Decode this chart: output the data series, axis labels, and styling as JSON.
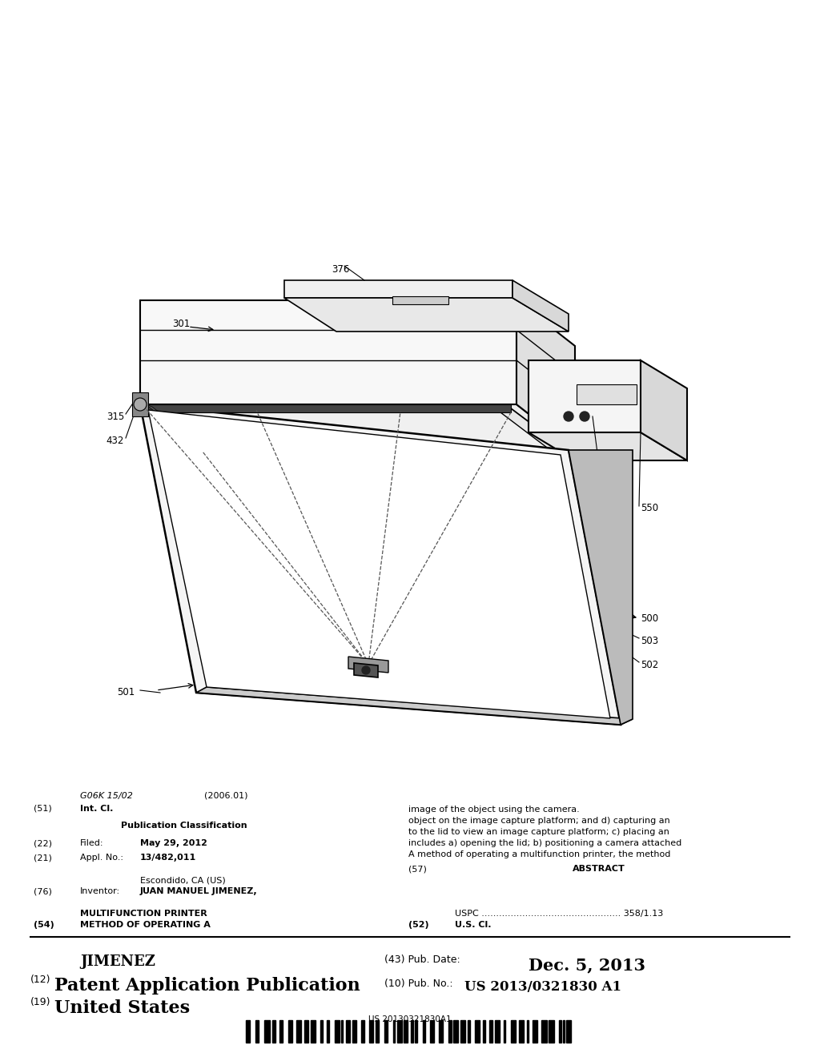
{
  "bg_color": "#ffffff",
  "barcode_text": "US 20130321830A1",
  "title_19": "(19) United States",
  "title_12": "(12) Patent Application Publication",
  "pub_no_label": "(10) Pub. No.:",
  "pub_no_value": "US 2013/0321830 A1",
  "inventor_name": "JIMENEZ",
  "pub_date_label": "(43) Pub. Date:",
  "pub_date_value": "Dec. 5, 2013",
  "field_54_label": "(54)",
  "field_52_label": "(52)",
  "field_52_text": "U.S. Cl.",
  "field_52_uspc": "USPC ................................................ 358/1.13",
  "field_76_label": "(76)",
  "field_57_label": "(57)",
  "field_57_title": "ABSTRACT",
  "field_57_text": "A method of operating a multifunction printer, the method includes a) opening the lid; b) positioning a camera attached to the lid to view an image capture platform; c) placing an object on the image capture platform; and d) capturing an image of the object using the camera.",
  "field_21_label": "(21)",
  "field_22_label": "(22)",
  "field_pub_class": "Publication Classification",
  "field_51_label": "(51)",
  "field_51_intcl": "Int. Cl."
}
